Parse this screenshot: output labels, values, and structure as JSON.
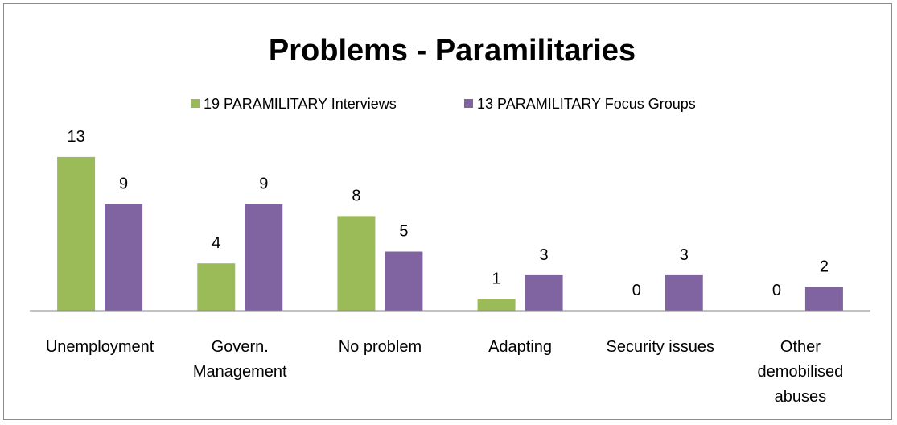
{
  "chart_data": {
    "type": "bar",
    "title": "Problems - Paramilitaries",
    "categories": [
      [
        "Unemployment"
      ],
      [
        "Govern.",
        "Management"
      ],
      [
        "No problem"
      ],
      [
        "Adapting"
      ],
      [
        "Security issues"
      ],
      [
        "Other",
        "demobilised",
        "abuses"
      ]
    ],
    "series": [
      {
        "name": "19 PARAMILITARY Interviews",
        "color": "#9bbb59",
        "values": [
          13,
          4,
          8,
          1,
          0,
          0
        ]
      },
      {
        "name": "13 PARAMILITARY Focus Groups",
        "color": "#8064a2",
        "values": [
          9,
          9,
          5,
          3,
          3,
          2
        ]
      }
    ],
    "ylim": [
      0,
      13
    ],
    "legend_position": "top",
    "grid": false,
    "xlabel": "",
    "ylabel": ""
  }
}
